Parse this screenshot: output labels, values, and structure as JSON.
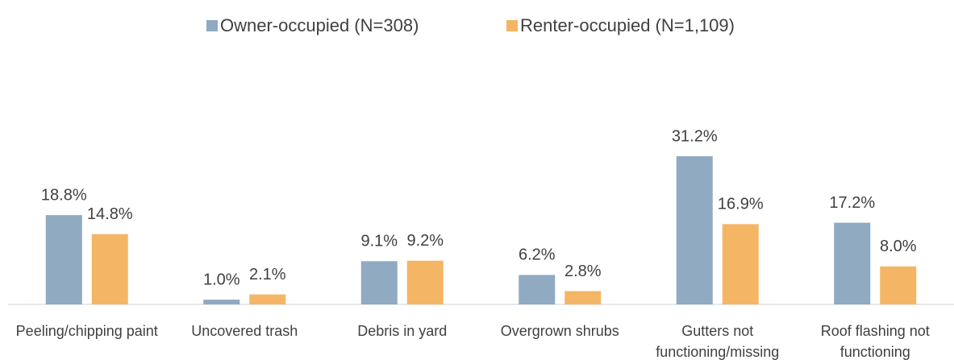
{
  "chart_data": {
    "type": "bar",
    "categories": [
      "Peeling/chipping paint",
      "Uncovered trash",
      "Debris in yard",
      "Overgrown shrubs",
      "Gutters not functioning/missing",
      "Roof flashing not functioning"
    ],
    "series": [
      {
        "name": "Owner-occupied (N=308)",
        "color": "#8FAAC1",
        "values": [
          18.8,
          1.0,
          9.1,
          6.2,
          31.2,
          17.2
        ],
        "value_labels": [
          "18.8%",
          "1.0%",
          "9.1%",
          "6.2%",
          "31.2%",
          "17.2%"
        ]
      },
      {
        "name": "Renter-occupied (N=1,109)",
        "color": "#F4B664",
        "values": [
          14.8,
          2.1,
          9.2,
          2.8,
          16.9,
          8.0
        ],
        "value_labels": [
          "14.8%",
          "2.1%",
          "9.2%",
          "2.8%",
          "16.9%",
          "8.0%"
        ]
      }
    ],
    "legend": "top"
  }
}
